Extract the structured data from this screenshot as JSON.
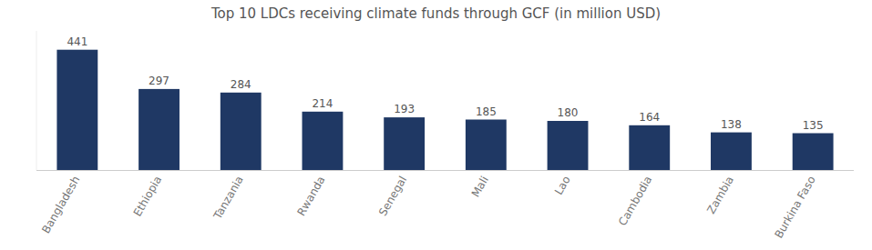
{
  "chart_data": {
    "type": "bar",
    "title": "Top 10 LDCs receiving climate funds through GCF (in million USD)",
    "categories": [
      "Bangladesh",
      "Ethiopia",
      "Tanzania",
      "Rwanda",
      "Senegal",
      "Mali",
      "Lao",
      "Cambodia",
      "Zambia",
      "Burkina Faso"
    ],
    "values": [
      441,
      297,
      284,
      214,
      193,
      185,
      180,
      164,
      138,
      135
    ],
    "color": "#1F3864",
    "ylim": [
      0,
      510
    ],
    "grid": false,
    "data_labels": true,
    "tick_labels": "x"
  }
}
